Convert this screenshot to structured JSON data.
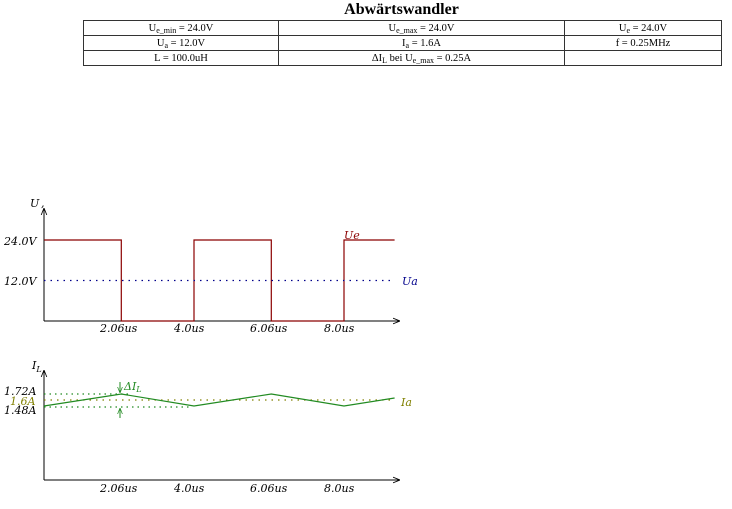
{
  "title": "Abwärtswandler",
  "params": {
    "ue_min_label": "U",
    "ue_min_sub": "e_min",
    "ue_min_value": " = 24.0V",
    "ue_max_label": "U",
    "ue_max_sub": "e_max",
    "ue_max_value": " = 24.0V",
    "ue_label": "U",
    "ue_sub": "e",
    "ue_value": " = 24.0V",
    "ua_label": "U",
    "ua_sub": "a",
    "ua_value": " = 12.0V",
    "ia_label": "I",
    "ia_sub": "a",
    "ia_value": " = 1.6A",
    "f_text": "f = 0.25MHz",
    "l_text": "L = 100.0uH",
    "dil_label": "ΔI",
    "dil_sub": "L",
    "dil_mid": " bei U",
    "dil_sub2": "e_max",
    "dil_value": " = 0.25A",
    "empty_cell": ""
  },
  "chart_data": [
    {
      "type": "line",
      "ylabel": "U",
      "yticks": [
        "24.0V",
        "12.0V"
      ],
      "xticks": [
        "2.06us",
        "4.0us",
        "6.06us",
        "8.0us"
      ],
      "series": [
        {
          "name": "Ue",
          "color": "#8b0000",
          "style": "solid",
          "points": [
            [
              0,
              24
            ],
            [
              2.06,
              24
            ],
            [
              2.06,
              0
            ],
            [
              4.0,
              0
            ],
            [
              4.0,
              24
            ],
            [
              6.06,
              24
            ],
            [
              6.06,
              0
            ],
            [
              8.0,
              0
            ],
            [
              8.0,
              24
            ],
            [
              9.35,
              24
            ]
          ]
        },
        {
          "name": "Ua",
          "color": "#00008b",
          "style": "dotted",
          "points": [
            [
              0,
              12
            ],
            [
              9.35,
              12
            ]
          ]
        }
      ],
      "ylim": [
        0,
        30
      ]
    },
    {
      "type": "line",
      "ylabel": "I",
      "ylabel_sub": "L",
      "yticks": [
        "1.72A",
        "1.6A",
        "1.48A"
      ],
      "xticks": [
        "2.06us",
        "4.0us",
        "6.06us",
        "8.0us"
      ],
      "annotation": "ΔI",
      "annotation_sub": "L",
      "series": [
        {
          "name": "",
          "color": "#228b22",
          "style": "solid",
          "points": [
            [
              0,
              1.48
            ],
            [
              2.06,
              1.72
            ],
            [
              4.0,
              1.48
            ],
            [
              6.06,
              1.72
            ],
            [
              8.0,
              1.48
            ],
            [
              9.35,
              1.64
            ]
          ]
        },
        {
          "name": "Ia",
          "color": "#808000",
          "style": "dotted",
          "points": [
            [
              0,
              1.6
            ],
            [
              9.35,
              1.6
            ]
          ]
        }
      ]
    }
  ],
  "colors": {
    "ue": "#8b0000",
    "ua": "#00008b",
    "il": "#228b22",
    "ia": "#808000"
  }
}
